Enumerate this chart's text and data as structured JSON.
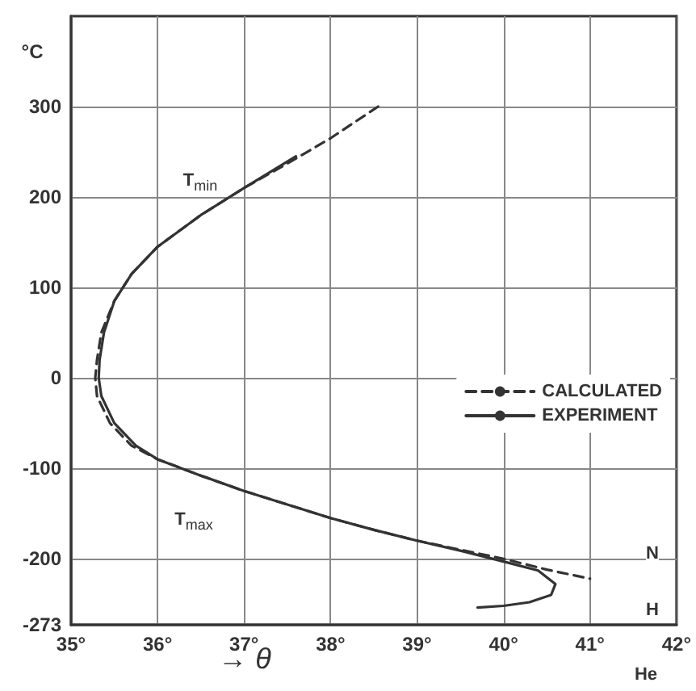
{
  "chart_data": {
    "type": "line",
    "xlabel": "→ θ",
    "ylabel": "°C",
    "xlim": [
      35,
      42
    ],
    "ylim": [
      -273,
      400
    ],
    "xticks": [
      {
        "value": 35,
        "label": "35°"
      },
      {
        "value": 36,
        "label": "36°"
      },
      {
        "value": 37,
        "label": "37°"
      },
      {
        "value": 38,
        "label": "38°"
      },
      {
        "value": 39,
        "label": "39°"
      },
      {
        "value": 40,
        "label": "40°"
      },
      {
        "value": 41,
        "label": "41°"
      },
      {
        "value": 42,
        "label": "42°"
      }
    ],
    "yticks": [
      300,
      200,
      100,
      0,
      -100,
      -200,
      -273
    ],
    "grid": true,
    "legend": "right",
    "marker": "none",
    "series": [
      {
        "name": "CALCULATED",
        "color": "#333333",
        "line_style": "dashed",
        "x": [
          38.55,
          38.0,
          37.5,
          37.0,
          36.5,
          36.0,
          35.7,
          35.5,
          35.35,
          35.3,
          35.28,
          35.3,
          35.45,
          35.7,
          36.0,
          36.5,
          37.0,
          37.5,
          38.0,
          38.5,
          39.0,
          39.5,
          40.0,
          40.5,
          41.0
        ],
        "values": [
          300,
          265,
          237,
          210,
          180,
          145,
          115,
          85,
          50,
          20,
          0,
          -20,
          -50,
          -75,
          -90,
          -108,
          -125,
          -140,
          -155,
          -168,
          -180,
          -190,
          -200,
          -212,
          -222
        ]
      },
      {
        "name": "EXPERIMENT",
        "color": "#333333",
        "line_style": "solid",
        "x": [
          37.6,
          37.0,
          36.5,
          36.0,
          35.7,
          35.5,
          35.38,
          35.33,
          35.32,
          35.35,
          35.5,
          35.75,
          36.0,
          36.5,
          37.0,
          37.5,
          38.0,
          38.5,
          39.0,
          39.5,
          40.0,
          40.4,
          40.6,
          40.55,
          40.3,
          40.0,
          39.7
        ],
        "values": [
          245,
          210,
          180,
          145,
          115,
          85,
          50,
          20,
          0,
          -20,
          -50,
          -75,
          -90,
          -108,
          -125,
          -140,
          -155,
          -168,
          -180,
          -191,
          -203,
          -213,
          -228,
          -240,
          -248,
          -252,
          -254
        ]
      }
    ],
    "annotations": [
      "T$_{min}$",
      "T$_{max}$",
      "N",
      "H",
      "He"
    ]
  }
}
